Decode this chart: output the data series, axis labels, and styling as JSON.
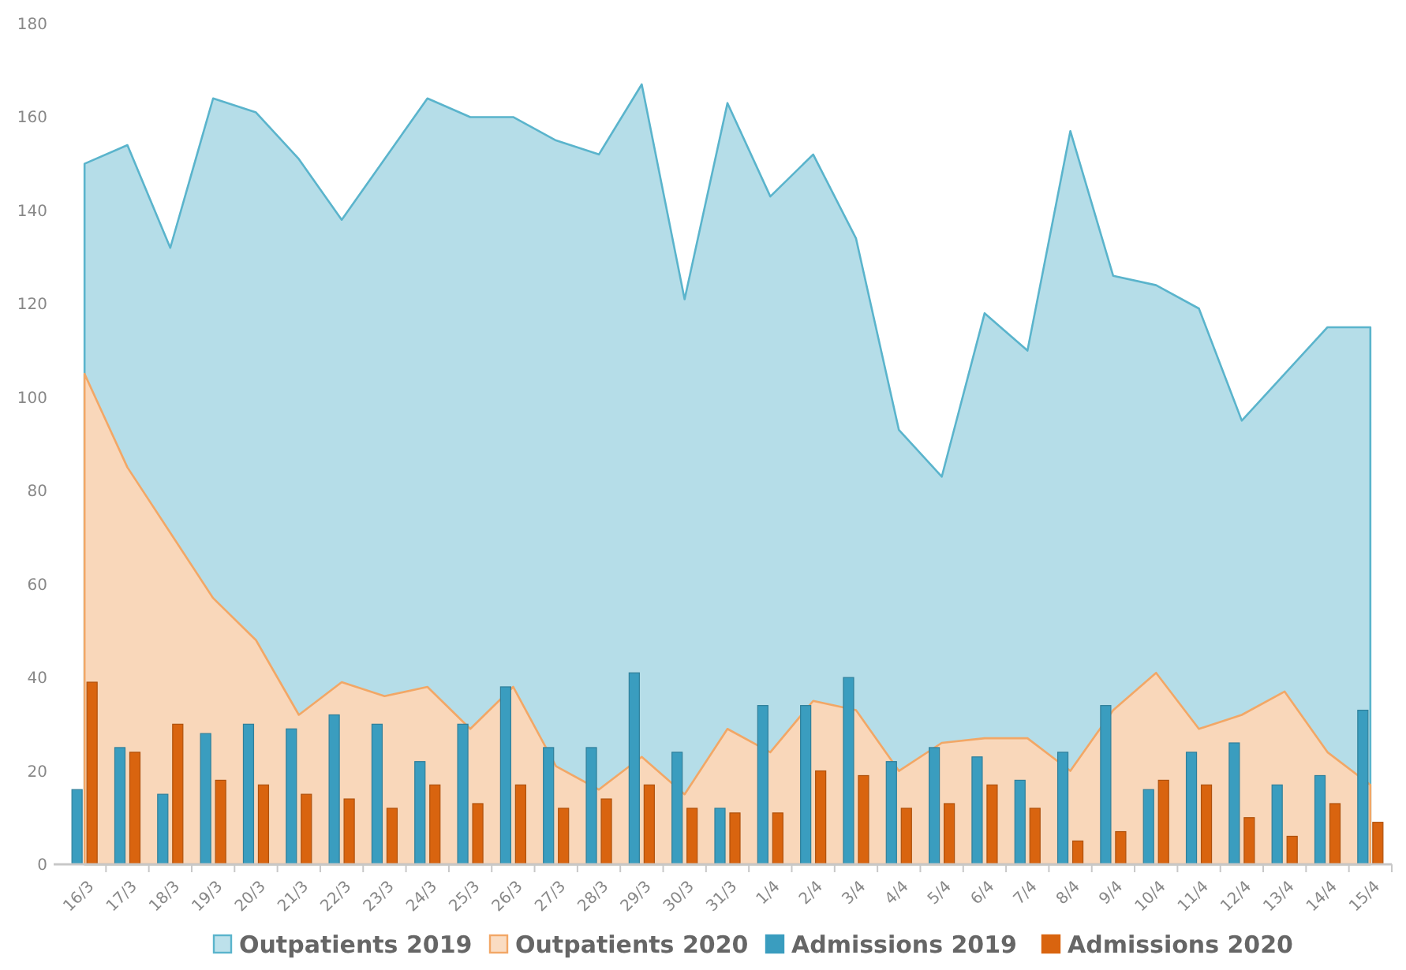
{
  "chart_data": {
    "type": "area",
    "categories": [
      "16/3",
      "17/3",
      "18/3",
      "19/3",
      "20/3",
      "21/3",
      "22/3",
      "23/3",
      "24/3",
      "25/3",
      "26/3",
      "27/3",
      "28/3",
      "29/3",
      "30/3",
      "31/3",
      "1/4",
      "2/4",
      "3/4",
      "4/4",
      "5/4",
      "6/4",
      "7/4",
      "8/4",
      "9/4",
      "10/4",
      "11/4",
      "12/4",
      "13/4",
      "14/4",
      "15/4"
    ],
    "series": [
      {
        "name": "Outpatients 2019",
        "color": "#5ab4cc",
        "values": [
          150,
          154,
          132,
          164,
          161,
          151,
          138,
          151,
          164,
          160,
          160,
          155,
          152,
          167,
          121,
          163,
          143,
          152,
          134,
          93,
          83,
          118,
          110,
          157,
          126,
          124,
          119,
          95,
          105,
          115,
          115
        ]
      },
      {
        "name": "Outpatients 2020",
        "color": "#f2a766",
        "values": [
          105,
          85,
          71,
          57,
          48,
          32,
          39,
          36,
          38,
          29,
          38,
          21,
          16,
          23,
          15,
          29,
          24,
          35,
          33,
          20,
          26,
          27,
          27,
          20,
          33,
          41,
          29,
          32,
          37,
          24,
          17
        ]
      },
      {
        "name": "Admissions 2019",
        "type": "bar",
        "color": "#3a9dbf",
        "values": [
          16,
          25,
          15,
          28,
          30,
          29,
          32,
          30,
          22,
          30,
          38,
          25,
          25,
          41,
          24,
          12,
          34,
          34,
          40,
          22,
          25,
          23,
          18,
          24,
          34,
          16,
          24,
          26,
          17,
          19,
          33
        ]
      },
      {
        "name": "Admissions 2020",
        "type": "bar",
        "color": "#d9640f",
        "values": [
          39,
          24,
          30,
          18,
          17,
          15,
          14,
          12,
          17,
          13,
          17,
          12,
          14,
          17,
          12,
          11,
          11,
          20,
          19,
          12,
          13,
          17,
          12,
          5,
          7,
          18,
          17,
          10,
          6,
          13,
          9
        ]
      }
    ],
    "ylim": [
      0,
      180
    ],
    "yticks": [
      0,
      20,
      40,
      60,
      80,
      100,
      120,
      140,
      160,
      180
    ],
    "grid": false,
    "legend": "bottom"
  }
}
